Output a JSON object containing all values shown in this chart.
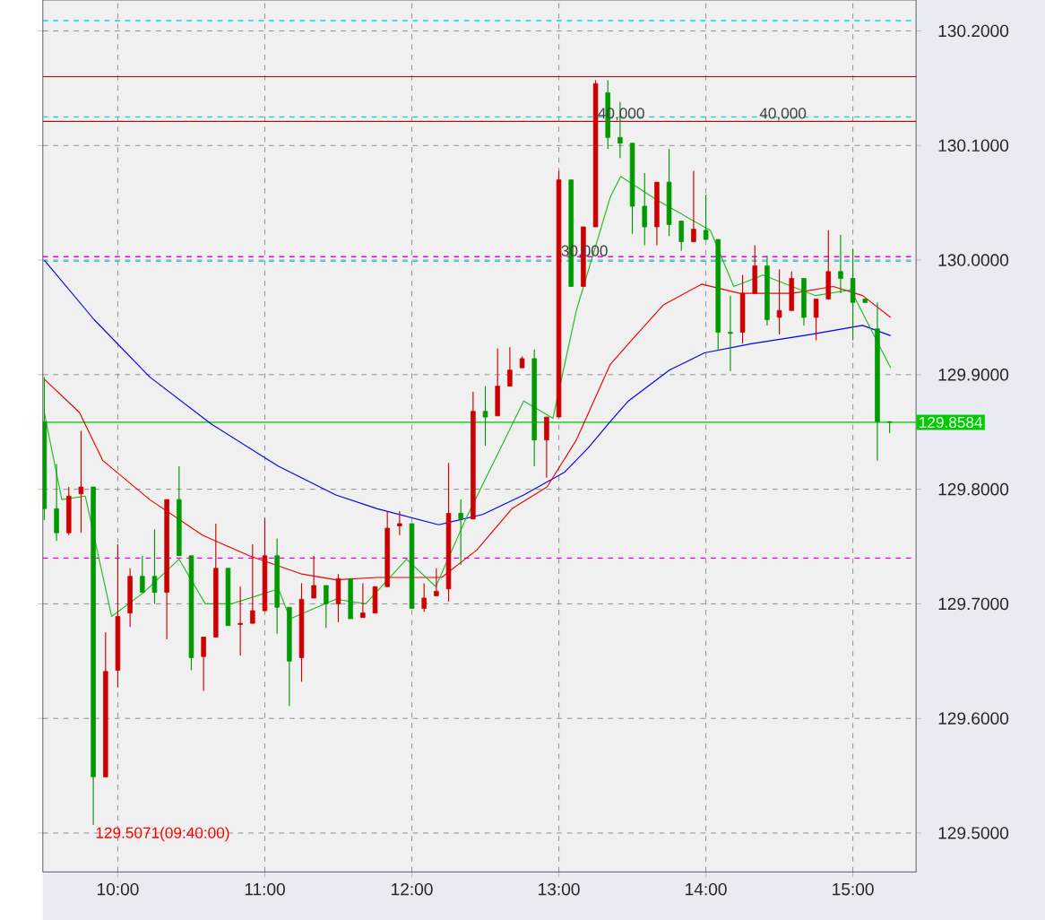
{
  "chart_data": {
    "type": "candlestick",
    "x": [
      9.5,
      9.5833,
      9.6667,
      9.75,
      9.8333,
      9.9167,
      10,
      10.0833,
      10.1667,
      10.25,
      10.3333,
      10.4167,
      10.5,
      10.5833,
      10.6667,
      10.75,
      10.8333,
      10.9167,
      11,
      11.0833,
      11.1667,
      11.25,
      11.3333,
      11.4167,
      11.5,
      11.5833,
      11.6667,
      11.75,
      11.8333,
      11.9167,
      12,
      12.0833,
      12.1667,
      12.25,
      12.3333,
      12.4167,
      12.5,
      12.5833,
      12.6667,
      12.75,
      12.8333,
      12.9167,
      13,
      13.0833,
      13.1667,
      13.25,
      13.3333,
      13.4167,
      13.5,
      13.5833,
      13.6667,
      13.75,
      13.8333,
      13.9167,
      14,
      14.0833,
      14.1667,
      14.25,
      14.3333,
      14.4167,
      14.5,
      14.5833,
      14.6667,
      14.75,
      14.8333,
      14.9167,
      15,
      15.0833,
      15.1667,
      15.25
    ],
    "ohlc": [
      [
        129.859,
        129.898,
        129.773,
        129.783
      ],
      [
        129.783,
        129.822,
        129.755,
        129.762
      ],
      [
        129.762,
        129.802,
        129.76,
        129.794
      ],
      [
        129.796,
        129.851,
        129.762,
        129.802
      ],
      [
        129.802,
        129.802,
        129.5071,
        129.549
      ],
      [
        129.549,
        129.675,
        129.549,
        129.641
      ],
      [
        129.642,
        129.752,
        129.627,
        129.689
      ],
      [
        129.692,
        129.731,
        129.68,
        129.724
      ],
      [
        129.724,
        129.742,
        129.71,
        129.71
      ],
      [
        129.724,
        129.765,
        129.7,
        129.71
      ],
      [
        129.71,
        129.791,
        129.669,
        129.791
      ],
      [
        129.791,
        129.82,
        129.742,
        129.742
      ],
      [
        129.742,
        129.742,
        129.642,
        129.653
      ],
      [
        129.654,
        129.671,
        129.624,
        129.671
      ],
      [
        129.671,
        129.77,
        129.671,
        129.731
      ],
      [
        129.731,
        129.731,
        129.681,
        129.681
      ],
      [
        129.682,
        129.715,
        129.655,
        129.683
      ],
      [
        129.683,
        129.752,
        129.683,
        129.694
      ],
      [
        129.694,
        129.775,
        129.694,
        129.742
      ],
      [
        129.742,
        129.757,
        129.674,
        129.697
      ],
      [
        129.697,
        129.697,
        129.611,
        129.65
      ],
      [
        129.653,
        129.718,
        129.632,
        129.704
      ],
      [
        129.705,
        129.742,
        129.705,
        129.716
      ],
      [
        129.716,
        129.716,
        129.679,
        129.7
      ],
      [
        129.7,
        129.726,
        129.684,
        129.722
      ],
      [
        129.722,
        129.722,
        129.687,
        129.687
      ],
      [
        129.688,
        129.718,
        129.688,
        129.692
      ],
      [
        129.692,
        129.715,
        129.692,
        129.715
      ],
      [
        129.715,
        129.781,
        129.715,
        129.766
      ],
      [
        129.768,
        129.781,
        129.76,
        129.77
      ],
      [
        129.77,
        129.77,
        129.696,
        129.696
      ],
      [
        129.696,
        129.718,
        129.693,
        129.705
      ],
      [
        129.707,
        129.731,
        129.707,
        129.711
      ],
      [
        129.713,
        129.823,
        129.702,
        129.779
      ],
      [
        129.779,
        129.791,
        129.734,
        129.774
      ],
      [
        129.774,
        129.885,
        129.774,
        129.868
      ],
      [
        129.868,
        129.89,
        129.838,
        129.863
      ],
      [
        129.864,
        129.923,
        129.864,
        129.89
      ],
      [
        129.89,
        129.924,
        129.89,
        129.904
      ],
      [
        129.906,
        129.916,
        129.906,
        129.914
      ],
      [
        129.914,
        129.922,
        129.82,
        129.843
      ],
      [
        129.843,
        129.863,
        129.81,
        129.863
      ],
      [
        129.863,
        130.078,
        129.863,
        130.07
      ],
      [
        130.07,
        130.07,
        129.977,
        129.977
      ],
      [
        129.977,
        130.029,
        129.977,
        130.029
      ],
      [
        130.029,
        130.157,
        130.029,
        130.154
      ],
      [
        130.146,
        130.157,
        130.097,
        130.107
      ],
      [
        130.107,
        130.138,
        130.089,
        130.102
      ],
      [
        130.102,
        130.102,
        130.023,
        130.047
      ],
      [
        130.047,
        130.076,
        130.013,
        130.029
      ],
      [
        130.029,
        130.068,
        130.013,
        130.068
      ],
      [
        130.068,
        130.097,
        130.021,
        130.031
      ],
      [
        130.034,
        130.034,
        130.008,
        130.016
      ],
      [
        130.016,
        130.078,
        130.016,
        130.027
      ],
      [
        130.026,
        130.057,
        130.018,
        130.018
      ],
      [
        130.018,
        130.018,
        129.922,
        129.937
      ],
      [
        129.937,
        129.969,
        129.903,
        129.936
      ],
      [
        129.937,
        129.987,
        129.927,
        129.971
      ],
      [
        129.971,
        130.013,
        129.971,
        129.995
      ],
      [
        129.995,
        130.004,
        129.943,
        129.948
      ],
      [
        129.95,
        129.992,
        129.935,
        129.956
      ],
      [
        129.956,
        129.99,
        129.956,
        129.984
      ],
      [
        129.984,
        129.984,
        129.943,
        129.95
      ],
      [
        129.95,
        129.966,
        129.93,
        129.966
      ],
      [
        129.966,
        130.026,
        129.966,
        129.99
      ],
      [
        129.99,
        130.022,
        129.971,
        129.984
      ],
      [
        129.984,
        130.01,
        129.93,
        129.963
      ],
      [
        129.966,
        129.966,
        129.963,
        129.963
      ],
      [
        129.94,
        129.963,
        129.825,
        129.859
      ],
      [
        129.859,
        129.859,
        129.849,
        129.8584
      ]
    ],
    "colors": [
      "#009900",
      "#009900",
      "#cc0000",
      "#cc0000",
      "#009900",
      "#cc0000",
      "#cc0000",
      "#cc0000",
      "#009900",
      "#009900",
      "#cc0000",
      "#009900",
      "#009900",
      "#cc0000",
      "#cc0000",
      "#009900",
      "#cc0000",
      "#cc0000",
      "#cc0000",
      "#009900",
      "#009900",
      "#cc0000",
      "#cc0000",
      "#009900",
      "#cc0000",
      "#009900",
      "#cc0000",
      "#cc0000",
      "#cc0000",
      "#cc0000",
      "#009900",
      "#cc0000",
      "#cc0000",
      "#cc0000",
      "#009900",
      "#cc0000",
      "#009900",
      "#cc0000",
      "#cc0000",
      "#cc0000",
      "#009900",
      "#cc0000",
      "#cc0000",
      "#009900",
      "#cc0000",
      "#cc0000",
      "#009900",
      "#009900",
      "#009900",
      "#009900",
      "#cc0000",
      "#009900",
      "#009900",
      "#cc0000",
      "#009900",
      "#009900",
      "#009900",
      "#cc0000",
      "#cc0000",
      "#009900",
      "#cc0000",
      "#cc0000",
      "#009900",
      "#cc0000",
      "#cc0000",
      "#009900",
      "#009900",
      "#009900",
      "#009900",
      "#009900"
    ],
    "series": [
      {
        "type": "line",
        "color": "#0000ee",
        "x": [
          9.5,
          9.839,
          10.217,
          10.635,
          11.093,
          11.483,
          11.765,
          12.183,
          12.482,
          12.761,
          13.04,
          13.199,
          13.35,
          13.473,
          13.752,
          13.991,
          14.309,
          14.708,
          15.066,
          15.257
        ],
        "values": [
          130.0,
          129.948,
          129.898,
          129.857,
          129.82,
          129.795,
          129.783,
          129.769,
          129.778,
          129.795,
          129.815,
          129.836,
          129.859,
          129.877,
          129.904,
          129.919,
          129.927,
          129.935,
          129.943,
          129.934
        ]
      },
      {
        "type": "line",
        "color": "#ee0000",
        "x": [
          9.5,
          9.739,
          9.898,
          10.217,
          10.575,
          10.894,
          11.252,
          11.483,
          11.765,
          12.203,
          12.442,
          12.681,
          12.92,
          13.119,
          13.35,
          13.473,
          13.712,
          13.971,
          14.23,
          14.588,
          14.867,
          15.066,
          15.257
        ],
        "values": [
          129.896,
          129.867,
          129.825,
          129.791,
          129.76,
          129.742,
          129.726,
          129.721,
          129.723,
          129.723,
          129.747,
          129.783,
          129.802,
          129.843,
          129.909,
          129.927,
          129.961,
          129.979,
          129.971,
          129.971,
          129.977,
          129.969,
          129.95
        ]
      },
      {
        "type": "line",
        "color": "#22bb22",
        "x": [
          9.5,
          9.619,
          9.779,
          9.958,
          10.177,
          10.416,
          10.595,
          10.774,
          11.093,
          11.173,
          11.483,
          11.686,
          11.964,
          12.163,
          12.363,
          12.761,
          12.96,
          13.119,
          13.35,
          13.421,
          13.672,
          14.03,
          14.19,
          14.389,
          14.747,
          14.986,
          15.257
        ],
        "values": [
          129.867,
          129.791,
          129.794,
          129.689,
          129.71,
          129.739,
          129.7,
          129.7,
          129.713,
          129.687,
          129.704,
          129.7,
          129.739,
          129.715,
          129.773,
          129.877,
          129.862,
          129.956,
          130.055,
          130.073,
          130.052,
          130.026,
          129.977,
          129.987,
          129.969,
          129.974,
          129.906
        ]
      }
    ],
    "ref_lines": [
      {
        "axis": "y",
        "value": 130.209,
        "color": "#00dddd",
        "line_style": "dashed"
      },
      {
        "axis": "y",
        "value": 130.16,
        "color": "#cc0000",
        "line_style": "solid"
      },
      {
        "axis": "y",
        "value": 130.125,
        "color": "#00dddd",
        "line_style": "dashed"
      },
      {
        "axis": "y",
        "value": 130.121,
        "color": "#cc0000",
        "line_style": "solid"
      },
      {
        "axis": "y",
        "value": 130.003,
        "color": "#ee00ee",
        "line_style": "dashed"
      },
      {
        "axis": "y",
        "value": 129.999,
        "color": "#00dddd",
        "line_style": "dashed"
      },
      {
        "axis": "y",
        "value": 129.8584,
        "color": "#00cc00",
        "line_style": "solid",
        "label": "129.8584"
      },
      {
        "axis": "y",
        "value": 129.74,
        "color": "#ee00ee",
        "line_style": "dashed"
      }
    ],
    "annotations": [
      {
        "text": "40,000",
        "x": 13.25,
        "y": 130.12
      },
      {
        "text": "40,000",
        "x": 14.35,
        "y": 130.12
      },
      {
        "text": "30,000",
        "x": 13.0,
        "y": 130.0
      },
      {
        "text": "129.5071(09:40:00)",
        "x": 9.8333,
        "y": 129.5071
      }
    ],
    "xlim": [
      9.49,
      15.43
    ],
    "ylim": [
      129.466,
      130.227
    ],
    "xticks": [
      {
        "value": 10,
        "label": "10:00"
      },
      {
        "value": 11,
        "label": "11:00"
      },
      {
        "value": 12,
        "label": "12:00"
      },
      {
        "value": 13,
        "label": "13:00"
      },
      {
        "value": 14,
        "label": "14:00"
      },
      {
        "value": 15,
        "label": "15:00"
      }
    ],
    "yticks": [
      {
        "value": 129.5,
        "label": "129.5000"
      },
      {
        "value": 129.6,
        "label": "129.6000"
      },
      {
        "value": 129.7,
        "label": "129.7000"
      },
      {
        "value": 129.8,
        "label": "129.8000"
      },
      {
        "value": 129.9,
        "label": "129.9000"
      },
      {
        "value": 130.0,
        "label": "130.0000"
      },
      {
        "value": 130.1,
        "label": "130.1000"
      },
      {
        "value": 130.2,
        "label": "130.2000"
      }
    ],
    "grid": true
  }
}
